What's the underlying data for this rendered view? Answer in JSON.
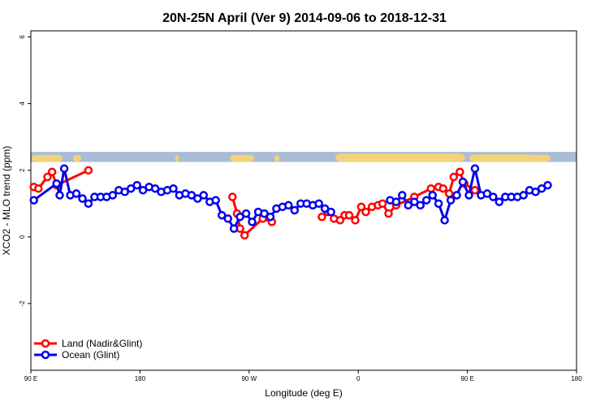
{
  "chart_data": {
    "type": "line",
    "title": "20N-25N April (Ver 9)   2014-09-06 to 2018-12-31",
    "xlabel": "Longitude (deg E)",
    "ylabel": "XCO2 - MLO trend (ppm)",
    "xlim": [
      90,
      450
    ],
    "ylim": [
      -4,
      6
    ],
    "x_ticks": [
      {
        "value": 90,
        "label": "90 E"
      },
      {
        "value": 162,
        "label": "180"
      },
      {
        "value": 234,
        "label": "90 W"
      },
      {
        "value": 306,
        "label": "0"
      },
      {
        "value": 378,
        "label": "90 E"
      },
      {
        "value": 450,
        "label": "180"
      }
    ],
    "y_ticks": [
      {
        "value": 6,
        "label": "6"
      },
      {
        "value": 4,
        "label": "4"
      },
      {
        "value": 2,
        "label": "2"
      },
      {
        "value": 0,
        "label": "0"
      },
      {
        "value": -2,
        "label": "-2"
      }
    ],
    "legend_position": "bottom-left",
    "map_band": {
      "y_range": [
        2.25,
        2.55
      ],
      "ocean_color": "#a9bcd6",
      "land_color": "#f3d27a"
    },
    "series": [
      {
        "name": "Land (Nadir&Glint)",
        "color": "#ff0000",
        "points": [
          [
            92,
            1.5
          ],
          [
            95,
            1.45
          ],
          [
            101,
            1.8
          ],
          [
            104,
            1.95
          ],
          [
            107,
            1.55
          ],
          [
            128,
            2.0
          ],
          [
            223,
            1.2
          ],
          [
            226,
            0.7
          ],
          [
            228,
            0.25
          ],
          [
            231,
            0.05
          ],
          [
            243,
            0.55
          ],
          [
            249,
            0.45
          ],
          [
            282,
            0.6
          ],
          [
            286,
            0.75
          ],
          [
            290,
            0.55
          ],
          [
            294,
            0.5
          ],
          [
            297,
            0.65
          ],
          [
            300,
            0.65
          ],
          [
            304,
            0.5
          ],
          [
            308,
            0.9
          ],
          [
            311,
            0.75
          ],
          [
            315,
            0.9
          ],
          [
            319,
            0.95
          ],
          [
            322,
            1.0
          ],
          [
            326,
            0.7
          ],
          [
            331,
            0.95
          ],
          [
            343,
            1.2
          ],
          [
            354,
            1.45
          ],
          [
            359,
            1.5
          ],
          [
            362,
            1.45
          ],
          [
            366,
            1.3
          ],
          [
            369,
            1.8
          ],
          [
            373,
            1.95
          ],
          [
            376,
            1.6
          ],
          [
            383,
            1.4
          ]
        ]
      },
      {
        "name": "Ocean (Glint)",
        "color": "#0000ee",
        "points": [
          [
            92,
            1.1
          ],
          [
            107,
            1.6
          ],
          [
            109,
            1.25
          ],
          [
            112,
            2.05
          ],
          [
            116,
            1.25
          ],
          [
            120,
            1.3
          ],
          [
            124,
            1.15
          ],
          [
            128,
            1.0
          ],
          [
            132,
            1.2
          ],
          [
            136,
            1.2
          ],
          [
            140,
            1.2
          ],
          [
            144,
            1.25
          ],
          [
            148,
            1.4
          ],
          [
            152,
            1.35
          ],
          [
            156,
            1.45
          ],
          [
            160,
            1.55
          ],
          [
            164,
            1.4
          ],
          [
            168,
            1.5
          ],
          [
            172,
            1.45
          ],
          [
            176,
            1.35
          ],
          [
            180,
            1.4
          ],
          [
            184,
            1.45
          ],
          [
            188,
            1.25
          ],
          [
            192,
            1.3
          ],
          [
            196,
            1.25
          ],
          [
            200,
            1.15
          ],
          [
            204,
            1.25
          ],
          [
            208,
            1.05
          ],
          [
            212,
            1.1
          ],
          [
            216,
            0.65
          ],
          [
            220,
            0.55
          ],
          [
            224,
            0.25
          ],
          [
            228,
            0.6
          ],
          [
            232,
            0.7
          ],
          [
            236,
            0.45
          ],
          [
            240,
            0.75
          ],
          [
            244,
            0.7
          ],
          [
            248,
            0.6
          ],
          [
            252,
            0.85
          ],
          [
            256,
            0.9
          ],
          [
            260,
            0.95
          ],
          [
            264,
            0.8
          ],
          [
            268,
            1.0
          ],
          [
            272,
            1.0
          ],
          [
            276,
            0.95
          ],
          [
            280,
            1.0
          ],
          [
            284,
            0.85
          ],
          [
            288,
            0.75
          ],
          [
            327,
            1.1
          ],
          [
            331,
            1.05
          ],
          [
            335,
            1.25
          ],
          [
            339,
            0.95
          ],
          [
            343,
            1.05
          ],
          [
            347,
            0.95
          ],
          [
            351,
            1.1
          ],
          [
            355,
            1.25
          ],
          [
            359,
            1.0
          ],
          [
            363,
            0.5
          ],
          [
            367,
            1.1
          ],
          [
            371,
            1.25
          ],
          [
            375,
            1.65
          ],
          [
            379,
            1.25
          ],
          [
            383,
            2.05
          ],
          [
            387,
            1.25
          ],
          [
            391,
            1.3
          ],
          [
            395,
            1.2
          ],
          [
            399,
            1.05
          ],
          [
            403,
            1.2
          ],
          [
            407,
            1.2
          ],
          [
            411,
            1.2
          ],
          [
            415,
            1.25
          ],
          [
            419,
            1.4
          ],
          [
            423,
            1.35
          ],
          [
            427,
            1.45
          ],
          [
            431,
            1.55
          ]
        ]
      }
    ]
  }
}
